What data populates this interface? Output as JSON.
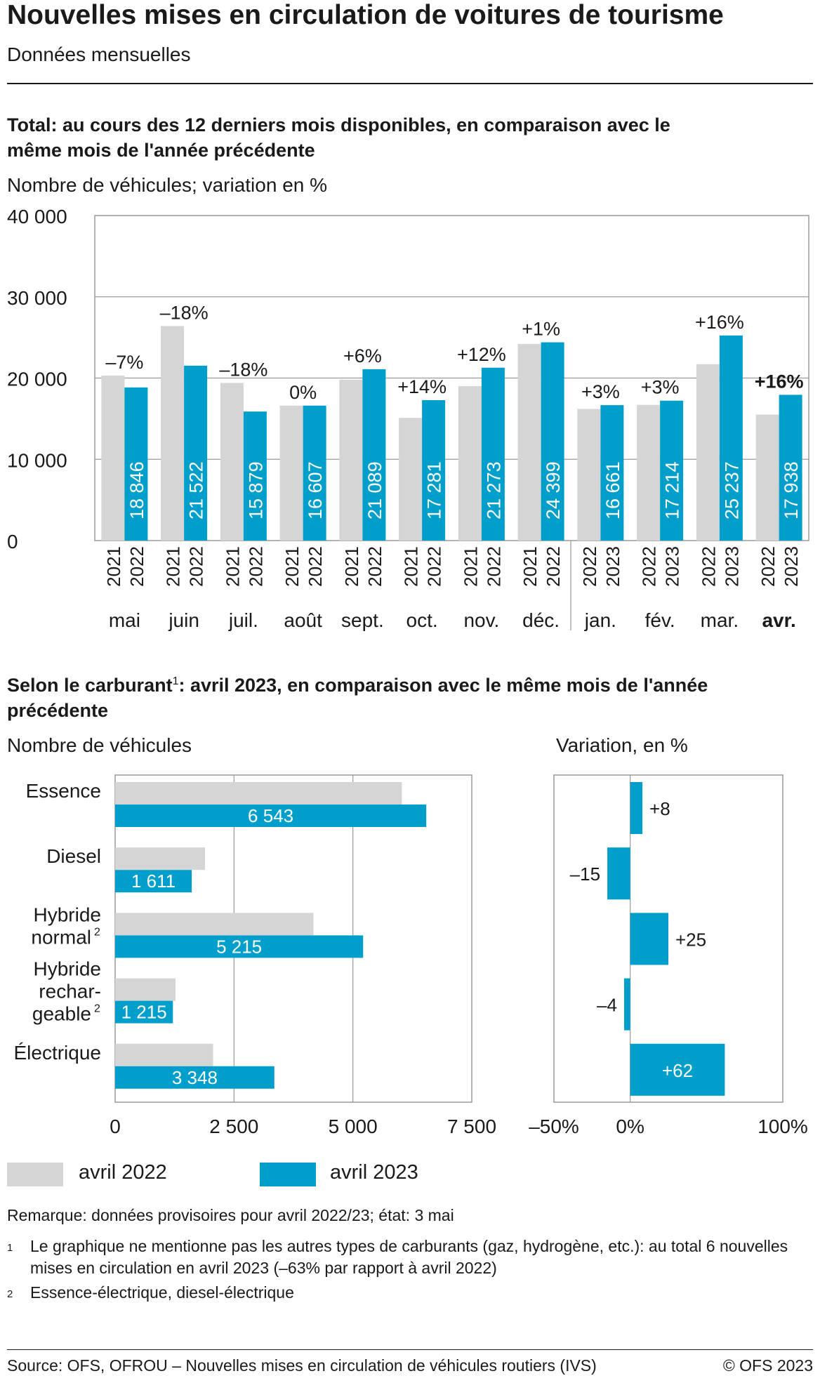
{
  "header": {
    "title": "Nouvelles mises en circulation de voitures de tourisme",
    "subtitle": "Données mensuelles"
  },
  "section1": {
    "heading": "Total: au cours des 12 derniers mois disponibles, en comparaison avec le même mois de l'année précédente",
    "unit_label": "Nombre de véhicules; variation en %"
  },
  "section2": {
    "heading_part1": "Selon le carburant",
    "heading_sup": "1",
    "heading_part2": ": avril 2023, en comparaison avec le même mois de l'année précédente",
    "unit_label_left": "Nombre de véhicules",
    "unit_label_right": "Variation, en %"
  },
  "legend": {
    "previous": "avril 2022",
    "current": "avril 2023"
  },
  "notes": {
    "remark": "Remarque: données provisoires pour avril 2022/23; état: 3 mai",
    "footnote1_mark": "1",
    "footnote1": "Le graphique ne mentionne pas les autres types de carburants (gaz, hydrogène, etc.): au total 6 nouvelles mises en circulation en avril 2023 (–63% par rapport à avril 2022)",
    "footnote2_mark": "2",
    "footnote2": "Essence-électrique, diesel-électrique"
  },
  "footer": {
    "source": "Source: OFS, OFROU – Nouvelles mises en circulation de véhicules routiers (IVS)",
    "copyright": "© OFS 2023"
  },
  "colors": {
    "previous": "#d5d5d5",
    "current": "#009fcb",
    "grid": "#9a9a9a",
    "text": "#1a1a1a"
  },
  "chart_data": [
    {
      "type": "bar",
      "ylim": [
        0,
        40000
      ],
      "yticks": [
        0,
        10000,
        20000,
        30000,
        40000
      ],
      "ytick_labels": [
        "0",
        "10 000",
        "20 000",
        "30 000",
        "40 000"
      ],
      "grid": true,
      "months": [
        {
          "month": "mai",
          "prev_year": "2021",
          "curr_year": "2022",
          "prev": 20300,
          "curr": 18846,
          "curr_label": "18 846",
          "change": "–7%",
          "bold": false
        },
        {
          "month": "juin",
          "prev_year": "2021",
          "curr_year": "2022",
          "prev": 26400,
          "curr": 21522,
          "curr_label": "21 522",
          "change": "–18%",
          "bold": false
        },
        {
          "month": "juil.",
          "prev_year": "2021",
          "curr_year": "2022",
          "prev": 19400,
          "curr": 15879,
          "curr_label": "15 879",
          "change": "–18%",
          "bold": false
        },
        {
          "month": "août",
          "prev_year": "2021",
          "curr_year": "2022",
          "prev": 16600,
          "curr": 16607,
          "curr_label": "16 607",
          "change": "0%",
          "bold": false
        },
        {
          "month": "sept.",
          "prev_year": "2021",
          "curr_year": "2022",
          "prev": 19800,
          "curr": 21089,
          "curr_label": "21 089",
          "change": "+6%",
          "bold": false
        },
        {
          "month": "oct.",
          "prev_year": "2021",
          "curr_year": "2022",
          "prev": 15100,
          "curr": 17281,
          "curr_label": "17 281",
          "change": "+14%",
          "bold": false
        },
        {
          "month": "nov.",
          "prev_year": "2021",
          "curr_year": "2022",
          "prev": 19000,
          "curr": 21273,
          "curr_label": "21 273",
          "change": "+12%",
          "bold": false
        },
        {
          "month": "déc.",
          "prev_year": "2021",
          "curr_year": "2022",
          "prev": 24200,
          "curr": 24399,
          "curr_label": "24 399",
          "change": "+1%",
          "bold": false
        },
        {
          "month": "jan.",
          "prev_year": "2022",
          "curr_year": "2023",
          "prev": 16200,
          "curr": 16661,
          "curr_label": "16 661",
          "change": "+3%",
          "bold": false
        },
        {
          "month": "fév.",
          "prev_year": "2022",
          "curr_year": "2023",
          "prev": 16700,
          "curr": 17214,
          "curr_label": "17 214",
          "change": "+3%",
          "bold": false
        },
        {
          "month": "mar.",
          "prev_year": "2022",
          "curr_year": "2023",
          "prev": 21700,
          "curr": 25237,
          "curr_label": "25 237",
          "change": "+16%",
          "bold": false
        },
        {
          "month": "avr.",
          "prev_year": "2022",
          "curr_year": "2023",
          "prev": 15500,
          "curr": 17938,
          "curr_label": "17 938",
          "change": "+16%",
          "bold": true
        }
      ],
      "series": [
        {
          "name": "",
          "key": "prev"
        },
        {
          "name": "",
          "key": "curr"
        }
      ]
    },
    {
      "type": "bar",
      "orientation": "horizontal",
      "xlim": [
        0,
        7500
      ],
      "xticks": [
        0,
        2500,
        5000,
        7500
      ],
      "xtick_labels": [
        "0",
        "2 500",
        "5 000",
        "7 500"
      ],
      "grid": true,
      "categories": [
        {
          "lines": [
            "Essence"
          ],
          "sup": ""
        },
        {
          "lines": [
            "Diesel"
          ],
          "sup": ""
        },
        {
          "lines": [
            "Hybride",
            "normal"
          ],
          "sup": "2"
        },
        {
          "lines": [
            "Hybride",
            "rechar-",
            "geable"
          ],
          "sup": "2"
        },
        {
          "lines": [
            "Électrique"
          ],
          "sup": ""
        }
      ],
      "series": [
        {
          "name": "avril 2022",
          "values": [
            6030,
            1890,
            4170,
            1270,
            2060
          ]
        },
        {
          "name": "avril 2023",
          "values": [
            6543,
            1611,
            5215,
            1215,
            3348
          ],
          "labels": [
            "6 543",
            "1 611",
            "5 215",
            "1 215",
            "3 348"
          ]
        }
      ]
    },
    {
      "type": "bar",
      "orientation": "horizontal",
      "xlim": [
        -50,
        100
      ],
      "xticks": [
        -50,
        0,
        100
      ],
      "xtick_labels": [
        "–50%",
        "0%",
        "100%"
      ],
      "grid": true,
      "categories": [
        "Essence",
        "Diesel",
        "Hybride normal",
        "Hybride rechargeable",
        "Électrique"
      ],
      "values": [
        8,
        -15,
        25,
        -4,
        62
      ],
      "labels": [
        "+8",
        "–15",
        "+25",
        "–4",
        "+62"
      ]
    }
  ]
}
